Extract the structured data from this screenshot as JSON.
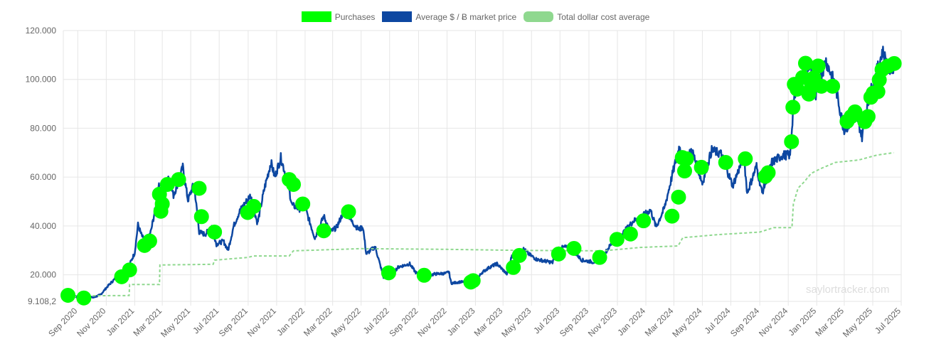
{
  "chart_data": {
    "type": "line",
    "legend": {
      "placement": "top-center",
      "entries": [
        {
          "label": "Purchases",
          "color": "#00ff00",
          "style": "filled-marker"
        },
        {
          "label": "Average $ / Ƀ market price",
          "color": "#0d47a1",
          "style": "solid-line"
        },
        {
          "label": "Total dollar cost average",
          "color": "#8fd88f",
          "style": "dashed-line"
        }
      ]
    },
    "watermark": "saylortracker.com",
    "y_axis": {
      "min": 9108.2,
      "max": 120000,
      "ticks": [
        {
          "value": 9108.2,
          "label": "9.108,2"
        },
        {
          "value": 20000,
          "label": "20.000"
        },
        {
          "value": 40000,
          "label": "40.000"
        },
        {
          "value": 60000,
          "label": "60.000"
        },
        {
          "value": 80000,
          "label": "80.000"
        },
        {
          "value": 100000,
          "label": "100.000"
        },
        {
          "value": 120000,
          "label": "120.000"
        }
      ],
      "gridlines": [
        20000,
        40000,
        60000,
        80000,
        100000,
        120000
      ]
    },
    "x_axis": {
      "start": "2020-08-01",
      "end": "2025-07-01",
      "ticks": [
        {
          "date": "2020-09-01",
          "label": "Sep 2020"
        },
        {
          "date": "2020-11-01",
          "label": "Nov 2020"
        },
        {
          "date": "2021-01-01",
          "label": "Jan 2021"
        },
        {
          "date": "2021-03-01",
          "label": "Mar 2021"
        },
        {
          "date": "2021-05-01",
          "label": "May 2021"
        },
        {
          "date": "2021-07-01",
          "label": "Jul 2021"
        },
        {
          "date": "2021-09-01",
          "label": "Sep 2021"
        },
        {
          "date": "2021-11-01",
          "label": "Nov 2021"
        },
        {
          "date": "2022-01-01",
          "label": "Jan 2022"
        },
        {
          "date": "2022-03-01",
          "label": "Mar 2022"
        },
        {
          "date": "2022-05-01",
          "label": "May 2022"
        },
        {
          "date": "2022-07-01",
          "label": "Jul 2022"
        },
        {
          "date": "2022-09-01",
          "label": "Sep 2022"
        },
        {
          "date": "2022-11-01",
          "label": "Nov 2022"
        },
        {
          "date": "2023-01-01",
          "label": "Jan 2023"
        },
        {
          "date": "2023-03-01",
          "label": "Mar 2023"
        },
        {
          "date": "2023-05-01",
          "label": "May 2023"
        },
        {
          "date": "2023-07-01",
          "label": "Jul 2023"
        },
        {
          "date": "2023-09-01",
          "label": "Sep 2023"
        },
        {
          "date": "2023-11-01",
          "label": "Nov 2023"
        },
        {
          "date": "2024-01-01",
          "label": "Jan 2024"
        },
        {
          "date": "2024-03-01",
          "label": "Mar 2024"
        },
        {
          "date": "2024-05-01",
          "label": "May 2024"
        },
        {
          "date": "2024-07-01",
          "label": "Jul 2024"
        },
        {
          "date": "2024-09-01",
          "label": "Sep 2024"
        },
        {
          "date": "2024-11-01",
          "label": "Nov 2024"
        },
        {
          "date": "2025-01-01",
          "label": "Jan 2025"
        },
        {
          "date": "2025-03-01",
          "label": "Mar 2025"
        },
        {
          "date": "2025-05-01",
          "label": "May 2025"
        },
        {
          "date": "2025-07-01",
          "label": "Jul 2025"
        }
      ]
    },
    "series": [
      {
        "name": "Average $ / Ƀ market price",
        "type": "line",
        "color": "#0d47a1",
        "points": [
          [
            "2020-08-01",
            11300
          ],
          [
            "2020-08-20",
            11800
          ],
          [
            "2020-09-05",
            10200
          ],
          [
            "2020-09-20",
            10900
          ],
          [
            "2020-10-05",
            10700
          ],
          [
            "2020-10-20",
            11900
          ],
          [
            "2020-11-05",
            15500
          ],
          [
            "2020-11-20",
            18400
          ],
          [
            "2020-12-05",
            19100
          ],
          [
            "2020-12-20",
            23800
          ],
          [
            "2021-01-01",
            29000
          ],
          [
            "2021-01-08",
            40500
          ],
          [
            "2021-01-15",
            36500
          ],
          [
            "2021-01-25",
            32500
          ],
          [
            "2021-02-05",
            38000
          ],
          [
            "2021-02-15",
            48000
          ],
          [
            "2021-02-21",
            57500
          ],
          [
            "2021-03-01",
            46000
          ],
          [
            "2021-03-13",
            61000
          ],
          [
            "2021-03-25",
            52500
          ],
          [
            "2021-04-05",
            58500
          ],
          [
            "2021-04-14",
            64000
          ],
          [
            "2021-04-25",
            50500
          ],
          [
            "2021-05-08",
            57500
          ],
          [
            "2021-05-19",
            37500
          ],
          [
            "2021-06-01",
            36500
          ],
          [
            "2021-06-15",
            40000
          ],
          [
            "2021-06-25",
            32500
          ],
          [
            "2021-07-10",
            33800
          ],
          [
            "2021-07-20",
            30000
          ],
          [
            "2021-08-01",
            40000
          ],
          [
            "2021-08-15",
            46500
          ],
          [
            "2021-09-06",
            52500
          ],
          [
            "2021-09-21",
            41000
          ],
          [
            "2021-10-06",
            55500
          ],
          [
            "2021-10-20",
            66000
          ],
          [
            "2021-10-28",
            60000
          ],
          [
            "2021-11-10",
            68000
          ],
          [
            "2021-11-25",
            57500
          ],
          [
            "2021-12-04",
            48500
          ],
          [
            "2021-12-20",
            47000
          ],
          [
            "2022-01-01",
            47500
          ],
          [
            "2022-01-22",
            35000
          ],
          [
            "2022-02-10",
            44000
          ],
          [
            "2022-02-24",
            37500
          ],
          [
            "2022-03-10",
            39500
          ],
          [
            "2022-03-28",
            47500
          ],
          [
            "2022-04-10",
            42000
          ],
          [
            "2022-04-26",
            38500
          ],
          [
            "2022-05-05",
            39500
          ],
          [
            "2022-05-12",
            28500
          ],
          [
            "2022-05-31",
            31500
          ],
          [
            "2022-06-13",
            22500
          ],
          [
            "2022-06-18",
            19000
          ],
          [
            "2022-07-01",
            19500
          ],
          [
            "2022-07-20",
            23200
          ],
          [
            "2022-08-13",
            24500
          ],
          [
            "2022-08-25",
            21200
          ],
          [
            "2022-09-07",
            18900
          ],
          [
            "2022-09-20",
            19500
          ],
          [
            "2022-10-05",
            20300
          ],
          [
            "2022-10-30",
            20600
          ],
          [
            "2022-11-05",
            21300
          ],
          [
            "2022-11-10",
            16500
          ],
          [
            "2022-11-30",
            17100
          ],
          [
            "2022-12-31",
            16500
          ],
          [
            "2023-01-14",
            20800
          ],
          [
            "2023-01-31",
            23100
          ],
          [
            "2023-02-16",
            24500
          ],
          [
            "2023-03-10",
            20200
          ],
          [
            "2023-03-20",
            28000
          ],
          [
            "2023-04-14",
            30500
          ],
          [
            "2023-04-25",
            28500
          ],
          [
            "2023-05-12",
            26300
          ],
          [
            "2023-06-15",
            25000
          ],
          [
            "2023-06-23",
            30500
          ],
          [
            "2023-07-13",
            31400
          ],
          [
            "2023-08-01",
            29200
          ],
          [
            "2023-08-17",
            26000
          ],
          [
            "2023-09-11",
            25200
          ],
          [
            "2023-10-01",
            27700
          ],
          [
            "2023-10-24",
            34000
          ],
          [
            "2023-11-15",
            37500
          ],
          [
            "2023-12-05",
            42000
          ],
          [
            "2023-12-20",
            43500
          ],
          [
            "2024-01-11",
            46500
          ],
          [
            "2024-01-23",
            39500
          ],
          [
            "2024-02-10",
            47500
          ],
          [
            "2024-02-28",
            62000
          ],
          [
            "2024-03-14",
            73500
          ],
          [
            "2024-03-20",
            62500
          ],
          [
            "2024-04-08",
            71500
          ],
          [
            "2024-05-01",
            57500
          ],
          [
            "2024-05-21",
            71000
          ],
          [
            "2024-06-10",
            69500
          ],
          [
            "2024-07-05",
            56500
          ],
          [
            "2024-07-29",
            68500
          ],
          [
            "2024-08-05",
            53500
          ],
          [
            "2024-08-25",
            64500
          ],
          [
            "2024-09-06",
            53500
          ],
          [
            "2024-09-27",
            66000
          ],
          [
            "2024-10-20",
            69000
          ],
          [
            "2024-11-05",
            69000
          ],
          [
            "2024-11-12",
            89000
          ],
          [
            "2024-11-22",
            99000
          ],
          [
            "2024-12-05",
            102000
          ],
          [
            "2024-12-17",
            107000
          ],
          [
            "2024-12-30",
            92500
          ],
          [
            "2025-01-20",
            108000
          ],
          [
            "2025-02-10",
            97500
          ],
          [
            "2025-02-28",
            79500
          ],
          [
            "2025-03-10",
            81000
          ],
          [
            "2025-03-25",
            87500
          ],
          [
            "2025-04-08",
            76500
          ],
          [
            "2025-04-25",
            94000
          ],
          [
            "2025-05-10",
            103500
          ],
          [
            "2025-05-22",
            111500
          ],
          [
            "2025-06-05",
            104000
          ],
          [
            "2025-06-15",
            105500
          ]
        ]
      },
      {
        "name": "Total dollar cost average",
        "type": "step-line",
        "color": "#8fd88f",
        "points": [
          [
            "2020-08-01",
            11100
          ],
          [
            "2020-09-14",
            11100
          ],
          [
            "2020-09-15",
            11400
          ],
          [
            "2020-12-20",
            11500
          ],
          [
            "2020-12-21",
            16000
          ],
          [
            "2021-02-23",
            16000
          ],
          [
            "2021-02-24",
            24000
          ],
          [
            "2021-06-18",
            24300
          ],
          [
            "2021-06-21",
            26000
          ],
          [
            "2021-08-31",
            27100
          ],
          [
            "2021-09-13",
            27700
          ],
          [
            "2021-11-28",
            27700
          ],
          [
            "2021-12-07",
            29800
          ],
          [
            "2022-05-01",
            30700
          ],
          [
            "2022-11-01",
            30400
          ],
          [
            "2023-04-01",
            30000
          ],
          [
            "2023-10-01",
            29800
          ],
          [
            "2023-12-20",
            31200
          ],
          [
            "2024-03-10",
            31800
          ],
          [
            "2024-03-20",
            35200
          ],
          [
            "2024-06-01",
            36400
          ],
          [
            "2024-09-01",
            37500
          ],
          [
            "2024-10-01",
            39300
          ],
          [
            "2024-11-09",
            39300
          ],
          [
            "2024-11-12",
            49000
          ],
          [
            "2024-11-22",
            55500
          ],
          [
            "2024-12-05",
            58000
          ],
          [
            "2024-12-20",
            61500
          ],
          [
            "2025-01-10",
            63500
          ],
          [
            "2025-02-10",
            66000
          ],
          [
            "2025-04-01",
            67000
          ],
          [
            "2025-05-10",
            69000
          ],
          [
            "2025-06-15",
            70000
          ]
        ]
      },
      {
        "name": "Purchases",
        "type": "scatter",
        "color": "#00ff00",
        "points": [
          [
            "2020-08-11",
            11600
          ],
          [
            "2020-09-14",
            10500
          ],
          [
            "2020-12-04",
            19200
          ],
          [
            "2020-12-21",
            22000
          ],
          [
            "2021-01-22",
            32000
          ],
          [
            "2021-02-02",
            33800
          ],
          [
            "2021-02-23",
            53000
          ],
          [
            "2021-02-26",
            46000
          ],
          [
            "2021-03-01",
            49000
          ],
          [
            "2021-03-12",
            57000
          ],
          [
            "2021-04-05",
            59000
          ],
          [
            "2021-05-19",
            55400
          ],
          [
            "2021-05-24",
            43800
          ],
          [
            "2021-06-21",
            37500
          ],
          [
            "2021-08-31",
            45500
          ],
          [
            "2021-09-13",
            48000
          ],
          [
            "2021-11-28",
            59000
          ],
          [
            "2021-12-07",
            57000
          ],
          [
            "2021-12-27",
            49000
          ],
          [
            "2022-02-10",
            38000
          ],
          [
            "2022-04-04",
            45800
          ],
          [
            "2022-06-29",
            20800
          ],
          [
            "2022-09-13",
            19800
          ],
          [
            "2022-12-22",
            17000
          ],
          [
            "2022-12-27",
            17600
          ],
          [
            "2023-03-23",
            23000
          ],
          [
            "2023-04-05",
            27900
          ],
          [
            "2023-06-28",
            28500
          ],
          [
            "2023-07-31",
            30800
          ],
          [
            "2023-09-24",
            27100
          ],
          [
            "2023-10-31",
            34500
          ],
          [
            "2023-11-29",
            36700
          ],
          [
            "2023-12-27",
            42100
          ],
          [
            "2024-02-26",
            44000
          ],
          [
            "2024-03-11",
            51800
          ],
          [
            "2024-03-19",
            68000
          ],
          [
            "2024-03-24",
            62500
          ],
          [
            "2024-03-28",
            67500
          ],
          [
            "2024-04-29",
            64000
          ],
          [
            "2024-06-20",
            66000
          ],
          [
            "2024-08-01",
            67500
          ],
          [
            "2024-09-13",
            60300
          ],
          [
            "2024-09-19",
            61800
          ],
          [
            "2024-11-08",
            74500
          ],
          [
            "2024-11-11",
            88600
          ],
          [
            "2024-11-14",
            98000
          ],
          [
            "2024-11-20",
            96000
          ],
          [
            "2024-12-02",
            100800
          ],
          [
            "2024-12-08",
            106600
          ],
          [
            "2024-12-15",
            94000
          ],
          [
            "2024-12-21",
            97000
          ],
          [
            "2024-12-26",
            100600
          ],
          [
            "2025-01-04",
            105500
          ],
          [
            "2025-01-11",
            97200
          ],
          [
            "2025-02-04",
            97200
          ],
          [
            "2025-03-07",
            82800
          ],
          [
            "2025-03-16",
            84800
          ],
          [
            "2025-03-24",
            86700
          ],
          [
            "2025-04-14",
            82700
          ],
          [
            "2025-04-21",
            84800
          ],
          [
            "2025-04-27",
            92700
          ],
          [
            "2025-05-02",
            94400
          ],
          [
            "2025-05-12",
            95000
          ],
          [
            "2025-05-15",
            99800
          ],
          [
            "2025-05-21",
            104000
          ],
          [
            "2025-06-03",
            105500
          ],
          [
            "2025-06-16",
            106500
          ]
        ]
      }
    ]
  }
}
